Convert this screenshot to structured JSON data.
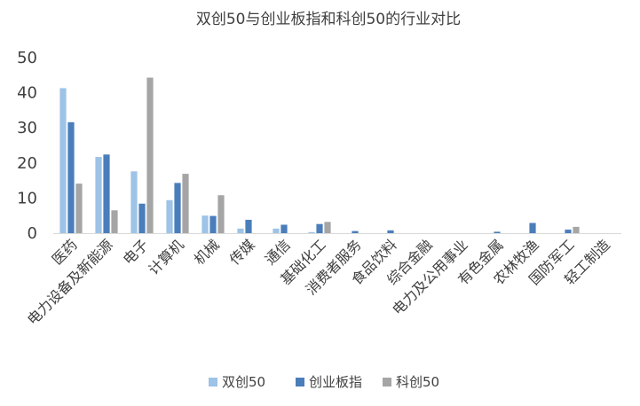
{
  "chart_data": {
    "type": "bar",
    "title": "双创50与创业板指和科创50的行业对比",
    "xlabel": "",
    "ylabel": "",
    "ylim": [
      0,
      50
    ],
    "yticks": [
      0,
      10,
      20,
      30,
      40,
      50
    ],
    "grid": false,
    "legend_position": "bottom",
    "categories": [
      "医药",
      "电力设备及新能源",
      "电子",
      "计算机",
      "机械",
      "传媒",
      "通信",
      "基础化工",
      "消费者服务",
      "食品饮料",
      "综合金融",
      "电力及公用事业",
      "有色金属",
      "农林牧渔",
      "国防军工",
      "轻工制造"
    ],
    "series": [
      {
        "name": "双创50",
        "color": "#9DC3E6",
        "values": [
          41.3,
          21.7,
          17.6,
          9.4,
          5.0,
          1.3,
          1.3,
          0.3,
          0,
          0,
          0,
          0,
          0,
          0,
          0,
          0
        ]
      },
      {
        "name": "创业板指",
        "color": "#4A7EBB",
        "values": [
          31.6,
          22.4,
          8.4,
          14.3,
          4.9,
          3.8,
          2.4,
          2.6,
          0.6,
          0.8,
          0,
          0,
          0.4,
          2.9,
          1.0,
          0
        ]
      },
      {
        "name": "科创50",
        "color": "#A5A5A5",
        "values": [
          14.1,
          6.5,
          44.3,
          16.9,
          10.8,
          0,
          0,
          3.2,
          0,
          0,
          0,
          0,
          0,
          0,
          1.8,
          0
        ]
      }
    ]
  }
}
